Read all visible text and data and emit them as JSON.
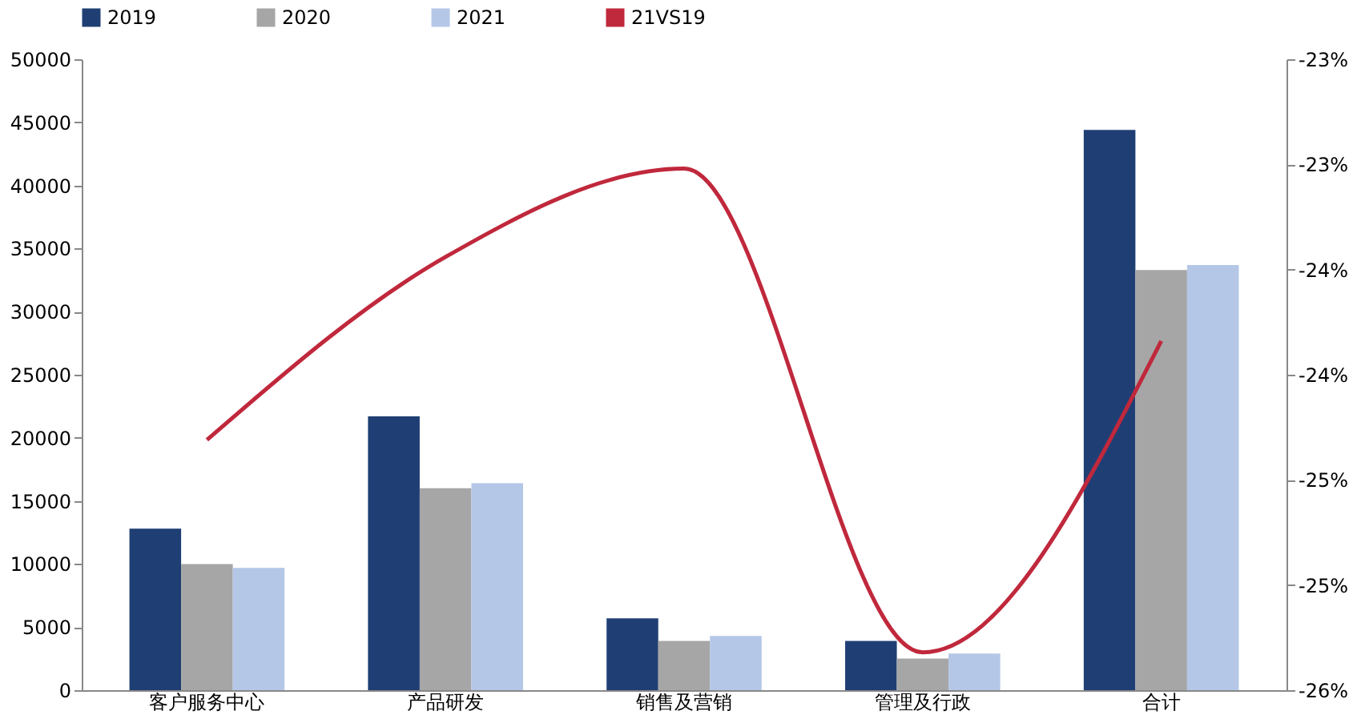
{
  "chart_data": {
    "type": "bar",
    "categories": [
      "客户服务中心",
      "产品研发",
      "销售及营销",
      "管理及行政",
      "合计"
    ],
    "series": [
      {
        "name": "2019",
        "color": "#1f3f74",
        "values": [
          12800,
          21700,
          5700,
          3900,
          44400
        ]
      },
      {
        "name": "2020",
        "color": "#a6a6a6",
        "values": [
          10000,
          16000,
          3900,
          2500,
          33300
        ]
      },
      {
        "name": "2021",
        "color": "#b4c7e7",
        "values": [
          9700,
          16400,
          4300,
          2900,
          33700
        ]
      },
      {
        "name": "21VS19",
        "color": "#c0283c",
        "type": "line",
        "axis": "y2",
        "values": [
          -24.81,
          -23.94,
          -23.52,
          -25.82,
          -24.34
        ]
      }
    ],
    "ylim": [
      0,
      50000
    ],
    "yticks": [
      0,
      5000,
      10000,
      15000,
      20000,
      25000,
      30000,
      35000,
      40000,
      45000,
      50000
    ],
    "y2lim": [
      -26,
      -23
    ],
    "y2ticks": [
      {
        "value": -26,
        "label": "-26%"
      },
      {
        "value": -25.5,
        "label": "-25%"
      },
      {
        "value": -25,
        "label": "-25%"
      },
      {
        "value": -24.5,
        "label": "-24%"
      },
      {
        "value": -24,
        "label": "-24%"
      },
      {
        "value": -23.5,
        "label": "-23%"
      },
      {
        "value": -23,
        "label": "-23%"
      }
    ],
    "legend": "top",
    "grid": false
  }
}
